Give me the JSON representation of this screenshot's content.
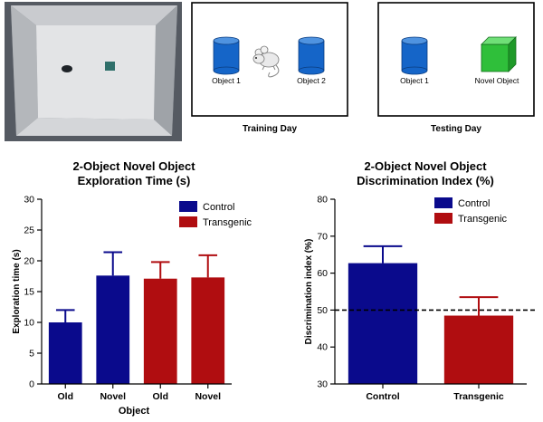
{
  "panels": {
    "training": {
      "caption": "Training Day",
      "object_left_label": "Object 1",
      "object_right_label": "Object 2"
    },
    "testing": {
      "caption": "Testing Day",
      "object_left_label": "Object 1",
      "object_right_label": "Novel Object"
    }
  },
  "colors": {
    "control": "#0a0a8c",
    "transgenic": "#b00d10",
    "cylinder": "#1565c8",
    "cube": "#2fbf3a"
  },
  "chart_data": [
    {
      "type": "bar",
      "title": "2-Object Novel Object",
      "subtitle": "Exploration Time (s)",
      "xlabel": "Object",
      "ylabel": "Exploration time (s)",
      "ylim": [
        0,
        30
      ],
      "yticks": [
        0,
        5,
        10,
        15,
        20,
        25,
        30
      ],
      "categories": [
        "Old",
        "Novel",
        "Old",
        "Novel"
      ],
      "legend_position": "top-right",
      "series": [
        {
          "name": "Control",
          "group": "control",
          "bars": [
            {
              "category_index": 0,
              "value": 10,
              "error": 2
            },
            {
              "category_index": 1,
              "value": 17.6,
              "error": 3.8
            }
          ]
        },
        {
          "name": "Transgenic",
          "group": "transgenic",
          "bars": [
            {
              "category_index": 2,
              "value": 17.1,
              "error": 2.7
            },
            {
              "category_index": 3,
              "value": 17.3,
              "error": 3.6
            }
          ]
        }
      ]
    },
    {
      "type": "bar",
      "title": "2-Object Novel Object",
      "subtitle": "Discrimination Index (%)",
      "xlabel": "",
      "ylabel": "Discrimination index (%)",
      "ylim": [
        30,
        80
      ],
      "yticks": [
        30,
        40,
        50,
        60,
        70,
        80
      ],
      "categories": [
        "Control",
        "Transgenic"
      ],
      "reference_line": 50,
      "legend_position": "top-right",
      "series": [
        {
          "name": "Control",
          "group": "control",
          "bars": [
            {
              "category_index": 0,
              "value": 62.7,
              "error": 4.6
            }
          ]
        },
        {
          "name": "Transgenic",
          "group": "transgenic",
          "bars": [
            {
              "category_index": 1,
              "value": 48.5,
              "error": 5.0
            }
          ]
        }
      ]
    }
  ]
}
